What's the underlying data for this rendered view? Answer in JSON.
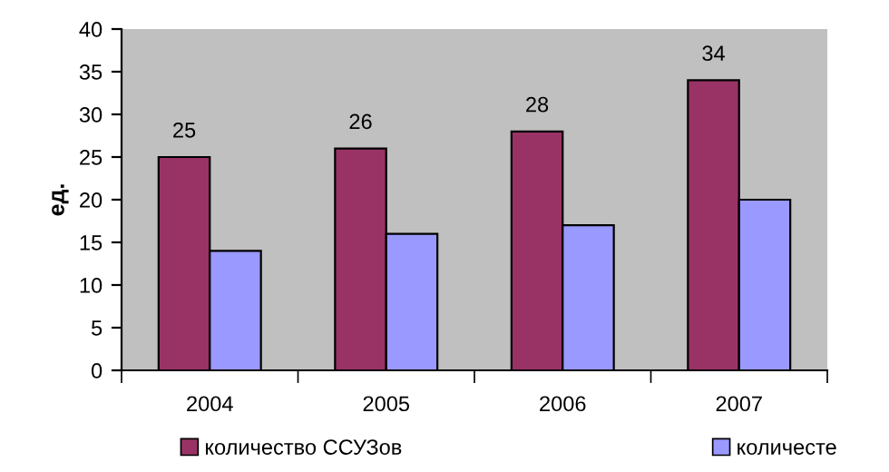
{
  "chart_data": {
    "type": "bar",
    "ylabel": "ед.",
    "categories": [
      "2004",
      "2005",
      "2006",
      "2007"
    ],
    "series": [
      {
        "name": "количество ССУЗов",
        "color": "#993366",
        "values": [
          25,
          26,
          28,
          34
        ],
        "value_labels": [
          "25",
          "26",
          "28",
          "34"
        ]
      },
      {
        "name": "количесте",
        "color": "#9999ff",
        "values": [
          14,
          16,
          17,
          20
        ]
      }
    ],
    "ylim": [
      0,
      40
    ],
    "yticks": [
      0,
      5,
      10,
      15,
      20,
      25,
      30,
      35,
      40
    ],
    "grid": false,
    "legend": "bottom"
  }
}
